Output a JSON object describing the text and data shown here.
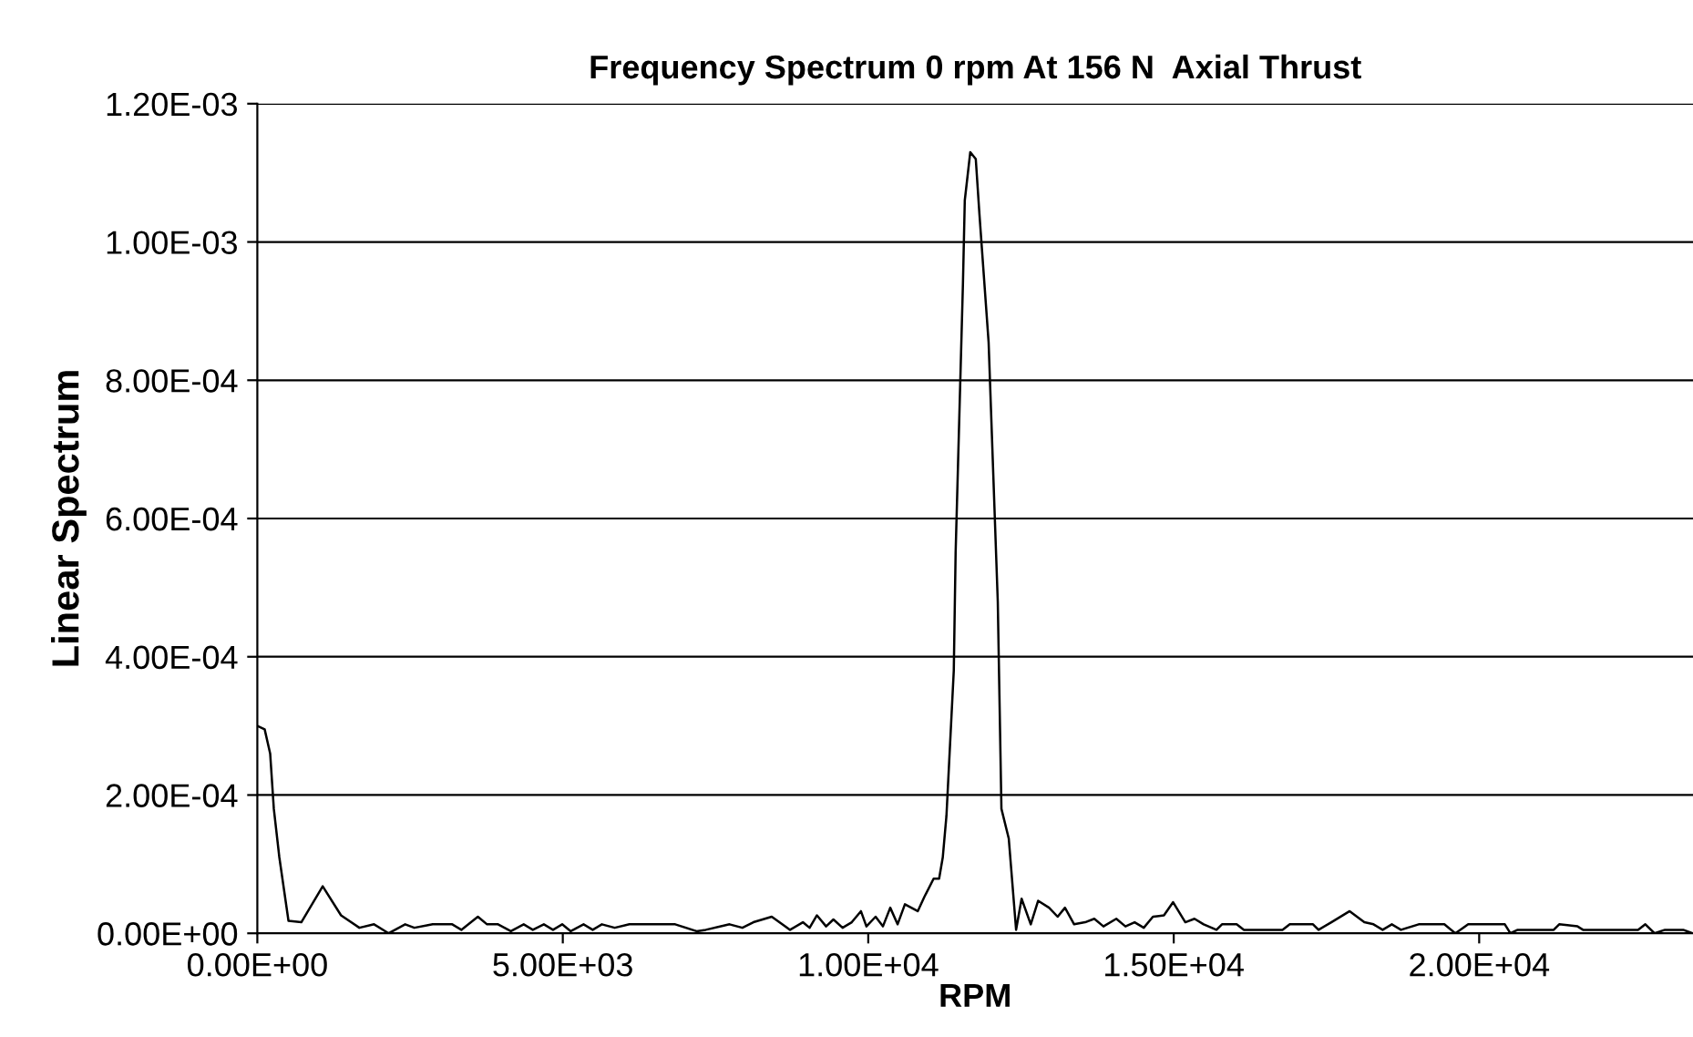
{
  "chart_data": {
    "type": "line",
    "title": "Frequency Spectrum 0 rpm At 156 N  Axial Thrust",
    "xlabel": "RPM",
    "ylabel": "Linear Spectrum",
    "x": [
      0,
      120,
      210,
      270,
      360,
      510,
      720,
      1070,
      1370,
      1670,
      1910,
      2150,
      2420,
      2570,
      2870,
      3190,
      3340,
      3610,
      3760,
      3940,
      4150,
      4360,
      4510,
      4690,
      4840,
      4990,
      5130,
      5340,
      5490,
      5640,
      5850,
      6090,
      6300,
      6450,
      6630,
      6840,
      7190,
      7340,
      7730,
      7940,
      8120,
      8420,
      8720,
      8930,
      9040,
      9160,
      9310,
      9430,
      9580,
      9730,
      9880,
      9970,
      10120,
      10240,
      10360,
      10480,
      10600,
      10810,
      10920,
      11070,
      11160,
      11220,
      11280,
      11400,
      11430,
      11550,
      11580,
      11670,
      11760,
      11820,
      11970,
      12120,
      12150,
      12180,
      12300,
      12420,
      12510,
      12660,
      12780,
      12960,
      13100,
      13220,
      13370,
      13550,
      13700,
      13850,
      14060,
      14210,
      14360,
      14510,
      14660,
      14840,
      14990,
      15190,
      15340,
      15490,
      15700,
      15790,
      16030,
      16150,
      16780,
      16900,
      17280,
      17370,
      17580,
      17880,
      18120,
      18270,
      18420,
      18570,
      18720,
      19010,
      19430,
      19610,
      19820,
      20420,
      20510,
      20630,
      21220,
      21310,
      21610,
      21700,
      22600,
      22720,
      22870,
      23040,
      23340,
      23490
    ],
    "values": [
      0.0003,
      0.000295,
      0.00026,
      0.00018,
      0.00011,
      1.8e-05,
      1.6e-05,
      6.8e-05,
      2.6e-05,
      8e-06,
      1.3e-05,
      0,
      1.3e-05,
      8e-06,
      1.3e-05,
      1.3e-05,
      5e-06,
      2.4e-05,
      1.3e-05,
      1.3e-05,
      3e-06,
      1.3e-05,
      5e-06,
      1.3e-05,
      5e-06,
      1.3e-05,
      3e-06,
      1.3e-05,
      5e-06,
      1.3e-05,
      8e-06,
      1.3e-05,
      1.3e-05,
      1.3e-05,
      1.3e-05,
      1.3e-05,
      3e-06,
      5e-06,
      1.3e-05,
      8e-06,
      1.6e-05,
      2.4e-05,
      5e-06,
      1.6e-05,
      8e-06,
      2.6e-05,
      1e-05,
      2e-05,
      8e-06,
      1.6e-05,
      3.2e-05,
      1e-05,
      2.4e-05,
      1e-05,
      3.7e-05,
      1.3e-05,
      4.2e-05,
      3.2e-05,
      5.3e-05,
      7.9e-05,
      7.9e-05,
      0.00011,
      0.00017,
      0.00038,
      0.00055,
      0.00094,
      0.00106,
      0.00113,
      0.00112,
      0.00104,
      0.000855,
      0.00048,
      0.00033,
      0.00018,
      0.000137,
      5e-06,
      5e-05,
      1.3e-05,
      4.7e-05,
      3.7e-05,
      2.4e-05,
      3.7e-05,
      1.3e-05,
      1.6e-05,
      2.1e-05,
      1e-05,
      2.1e-05,
      1e-05,
      1.6e-05,
      8e-06,
      2.4e-05,
      2.6e-05,
      4.5e-05,
      1.6e-05,
      2.1e-05,
      1.3e-05,
      5e-06,
      1.3e-05,
      1.3e-05,
      5e-06,
      5e-06,
      1.3e-05,
      1.3e-05,
      5e-06,
      1.6e-05,
      3.2e-05,
      1.6e-05,
      1.3e-05,
      5e-06,
      1.3e-05,
      5e-06,
      1.3e-05,
      1.3e-05,
      0,
      1.3e-05,
      1.3e-05,
      0,
      5e-06,
      5e-06,
      1.3e-05,
      1e-05,
      5e-06,
      5e-06,
      1.3e-05,
      0,
      5e-06,
      5e-06,
      0
    ],
    "color": "#000000",
    "xlim": [
      0,
      23500
    ],
    "xticks": [
      {
        "value": 0,
        "label": "0.00E+00"
      },
      {
        "value": 5000,
        "label": "5.00E+03"
      },
      {
        "value": 10000,
        "label": "1.00E+04"
      },
      {
        "value": 15000,
        "label": "1.50E+04"
      },
      {
        "value": 20000,
        "label": "2.00E+04"
      }
    ],
    "ylim": [
      0,
      0.0012
    ],
    "yticks": [
      {
        "value": 0,
        "label": "0.00E+00"
      },
      {
        "value": 0.0002,
        "label": "2.00E-04"
      },
      {
        "value": 0.0004,
        "label": "4.00E-04"
      },
      {
        "value": 0.0006,
        "label": "6.00E-04"
      },
      {
        "value": 0.0008,
        "label": "8.00E-04"
      },
      {
        "value": 0.001,
        "label": "1.00E-03"
      },
      {
        "value": 0.0012,
        "label": "1.20E-03"
      }
    ],
    "grid": "y",
    "marker": "none",
    "line_style": "solid"
  }
}
